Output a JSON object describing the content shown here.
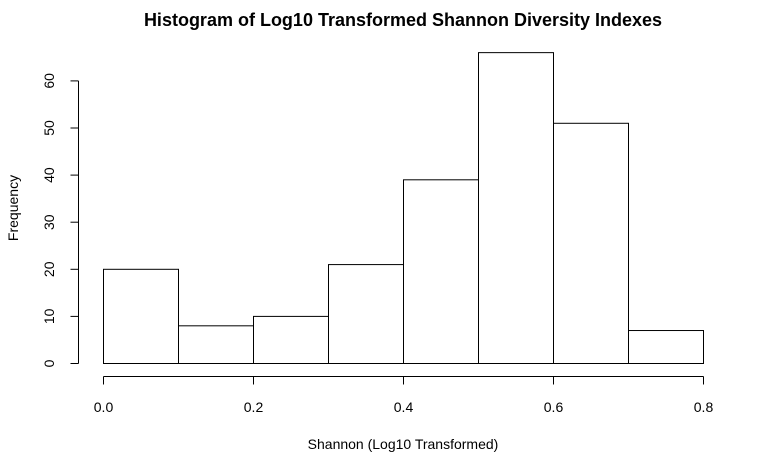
{
  "chart_data": {
    "type": "bar",
    "subtype": "histogram",
    "title": "Histogram of Log10 Transformed Shannon Diversity Indexes",
    "xlabel": "Shannon (Log10 Transformed)",
    "ylabel": "Frequency",
    "bins": [
      {
        "x0": 0.0,
        "x1": 0.1,
        "value": 20
      },
      {
        "x0": 0.1,
        "x1": 0.2,
        "value": 8
      },
      {
        "x0": 0.2,
        "x1": 0.3,
        "value": 10
      },
      {
        "x0": 0.3,
        "x1": 0.4,
        "value": 21
      },
      {
        "x0": 0.4,
        "x1": 0.5,
        "value": 39
      },
      {
        "x0": 0.5,
        "x1": 0.6,
        "value": 66
      },
      {
        "x0": 0.6,
        "x1": 0.7,
        "value": 51
      },
      {
        "x0": 0.7,
        "x1": 0.8,
        "value": 7
      }
    ],
    "xlim": [
      0.0,
      0.8
    ],
    "ylim": [
      0,
      66
    ],
    "x_ticks": [
      0.0,
      0.2,
      0.4,
      0.6,
      0.8
    ],
    "x_tick_labels": [
      "0.0",
      "0.2",
      "0.4",
      "0.6",
      "0.8"
    ],
    "y_ticks": [
      0,
      10,
      20,
      30,
      40,
      50,
      60
    ],
    "y_tick_labels": [
      "0",
      "10",
      "20",
      "30",
      "40",
      "50",
      "60"
    ],
    "grid": false,
    "legend": "none",
    "colors": {
      "bar_fill": "#ffffff",
      "bar_stroke": "#000000",
      "text": "#000000",
      "background": "#ffffff"
    }
  }
}
